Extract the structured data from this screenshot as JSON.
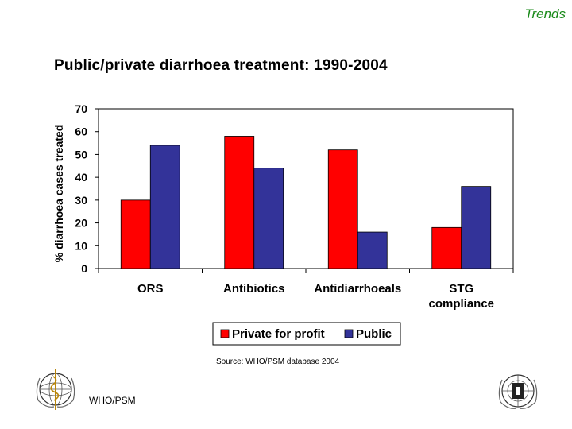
{
  "header": {
    "section_tag": "Trends"
  },
  "slide": {
    "title": "Public/private diarrhoea treatment: 1990-2004"
  },
  "chart_data": {
    "type": "bar",
    "categories": [
      "ORS",
      "Antibiotics",
      "Antidiarrhoeals",
      "STG compliance"
    ],
    "series": [
      {
        "name": "Private for profit",
        "values": [
          30,
          58,
          52,
          18
        ],
        "color": "#ff0000"
      },
      {
        "name": "Public",
        "values": [
          54,
          44,
          16,
          36
        ],
        "color": "#333399"
      }
    ],
    "ylabel": "% diarrhoea cases treated",
    "xlabel": "",
    "ylim": [
      0,
      70
    ],
    "yticks": [
      0,
      10,
      20,
      30,
      40,
      50,
      60,
      70
    ],
    "grid": false,
    "legend": "bottom"
  },
  "footer": {
    "source": "Source: WHO/PSM database 2004",
    "org_label": "WHO/PSM",
    "logos": [
      "who-emblem-icon",
      "un-emblem-icon"
    ]
  }
}
